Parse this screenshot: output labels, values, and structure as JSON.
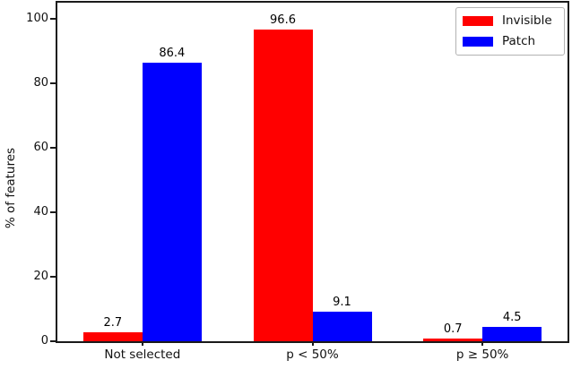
{
  "chart_data": {
    "type": "bar",
    "title": "",
    "xlabel": "",
    "ylabel": "% of features",
    "categories": [
      "Not selected",
      "p < 50%",
      "p ≥ 50%"
    ],
    "series": [
      {
        "name": "Invisible",
        "color": "#ff0000",
        "values": [
          2.7,
          96.6,
          0.7
        ]
      },
      {
        "name": "Patch",
        "color": "#0000ff",
        "values": [
          86.4,
          9.1,
          4.5
        ]
      }
    ],
    "bar_value_labels": [
      [
        "2.7",
        "96.6",
        "0.7"
      ],
      [
        "86.4",
        "9.1",
        "4.5"
      ]
    ],
    "ylim": [
      0,
      105
    ],
    "yticks": [
      0,
      20,
      40,
      60,
      80,
      100
    ],
    "grid": false,
    "legend_position": "upper right"
  },
  "colors": {
    "axis": "#1a1a1a",
    "text": "#111111",
    "background": "#ffffff",
    "legend_border": "#b3b3b3",
    "series_invisible": "#ff0000",
    "series_patch": "#0000ff"
  }
}
